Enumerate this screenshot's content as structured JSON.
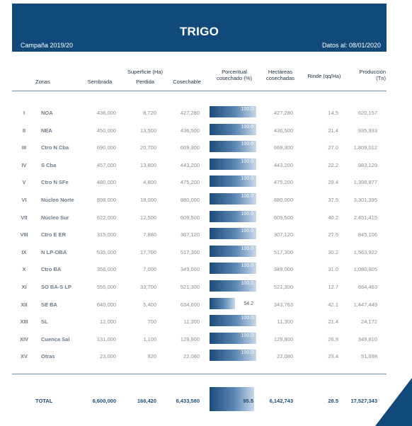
{
  "header": {
    "title": "TRIGO",
    "campaign": "Campaña 2019/20",
    "date": "Datos al: 08/01/2020"
  },
  "columns": {
    "zonas": "Zonas",
    "superficie": "Superficie (Ha)",
    "sembrada": "Sembrada",
    "perdida": "Perdida",
    "cosechable": "Cosechable",
    "porcentual": "Porcentual\ncosechado (%)",
    "hectareas": "Hectáreas\ncosechadas",
    "rinde": "Rinde (qq/Ha)",
    "produccion": "Producción\n(Tn)"
  },
  "rows": [
    {
      "num": "I",
      "zona": "NOA",
      "sembrada": "436,000",
      "perdida": "8,720",
      "cosechable": "427,280",
      "pct": "100.0",
      "pct_value": 100.0,
      "hectareas": "427,280",
      "rinde": "14.5",
      "produccion": "620,157"
    },
    {
      "num": "II",
      "zona": "NEA",
      "sembrada": "450,000",
      "perdida": "13,500",
      "cosechable": "436,500",
      "pct": "100.0",
      "pct_value": 100.0,
      "hectareas": "436,500",
      "rinde": "21.4",
      "produccion": "935,933"
    },
    {
      "num": "III",
      "zona": "Ctro N Cba",
      "sembrada": "690,000",
      "perdida": "20,700",
      "cosechable": "669,300",
      "pct": "100.0",
      "pct_value": 100.0,
      "hectareas": "669,300",
      "rinde": "27.0",
      "produccion": "1,809,012"
    },
    {
      "num": "IV",
      "zona": "S Cba",
      "sembrada": "457,000",
      "perdida": "13,800",
      "cosechable": "443,200",
      "pct": "100.0",
      "pct_value": 100.0,
      "hectareas": "443,200",
      "rinde": "22.2",
      "produccion": "983,129"
    },
    {
      "num": "V",
      "zona": "Ctro N SFe",
      "sembrada": "480,000",
      "perdida": "4,800",
      "cosechable": "475,200",
      "pct": "100.0",
      "pct_value": 100.0,
      "hectareas": "475,200",
      "rinde": "29.4",
      "produccion": "1,398,877"
    },
    {
      "num": "VI",
      "zona": "Núcleo Norte",
      "sembrada": "898,000",
      "perdida": "18,000",
      "cosechable": "880,000",
      "pct": "100.0",
      "pct_value": 100.0,
      "hectareas": "880,000",
      "rinde": "37.5",
      "produccion": "3,301,395"
    },
    {
      "num": "VII",
      "zona": "Núcleo Sur",
      "sembrada": "622,000",
      "perdida": "12,500",
      "cosechable": "609,500",
      "pct": "100.0",
      "pct_value": 100.0,
      "hectareas": "609,500",
      "rinde": "40.2",
      "produccion": "2,451,415"
    },
    {
      "num": "VIII",
      "zona": "Ctro E ER",
      "sembrada": "315,000",
      "perdida": "7,880",
      "cosechable": "307,120",
      "pct": "100.0",
      "pct_value": 100.0,
      "hectareas": "307,120",
      "rinde": "27.5",
      "produccion": "845,106"
    },
    {
      "num": "IX",
      "zona": "N LP-OBA",
      "sembrada": "535,000",
      "perdida": "17,700",
      "cosechable": "517,300",
      "pct": "100.0",
      "pct_value": 100.0,
      "hectareas": "517,300",
      "rinde": "30.2",
      "produccion": "1,563,922"
    },
    {
      "num": "X",
      "zona": "Ctro BA",
      "sembrada": "356,000",
      "perdida": "7,000",
      "cosechable": "349,000",
      "pct": "100.0",
      "pct_value": 100.0,
      "hectareas": "349,000",
      "rinde": "31.0",
      "produccion": "1,080,805"
    },
    {
      "num": "XI",
      "zona": "SO BA-S LP",
      "sembrada": "555,000",
      "perdida": "33,700",
      "cosechable": "521,300",
      "pct": "100.0",
      "pct_value": 100.0,
      "hectareas": "521,300",
      "rinde": "12.7",
      "produccion": "664,463"
    },
    {
      "num": "XII",
      "zona": "SE BA",
      "sembrada": "640,000",
      "perdida": "5,400",
      "cosechable": "634,600",
      "pct": "54.2",
      "pct_value": 54.2,
      "hectareas": "343,763",
      "rinde": "42.1",
      "produccion": "1,447,449"
    },
    {
      "num": "XIII",
      "zona": "SL",
      "sembrada": "12,000",
      "perdida": "700",
      "cosechable": "11,300",
      "pct": "100.0",
      "pct_value": 100.0,
      "hectareas": "11,300",
      "rinde": "21.4",
      "produccion": "24,172"
    },
    {
      "num": "XIV",
      "zona": "Cuenca Sal",
      "sembrada": "131,000",
      "perdida": "1,100",
      "cosechable": "129,900",
      "pct": "100.0",
      "pct_value": 100.0,
      "hectareas": "129,900",
      "rinde": "26.9",
      "produccion": "349,810"
    },
    {
      "num": "XV",
      "zona": "Otras",
      "sembrada": "23,000",
      "perdida": "920",
      "cosechable": "22,080",
      "pct": "100.0",
      "pct_value": 100.0,
      "hectareas": "22,080",
      "rinde": "23.4",
      "produccion": "51,698"
    }
  ],
  "total": {
    "label": "TOTAL",
    "sembrada": "6,600,000",
    "perdida": "166,420",
    "cosechable": "6,433,580",
    "pct": "95.5",
    "pct_value": 95.5,
    "hectareas": "6,142,743",
    "rinde": "28.5",
    "produccion": "17,527,343"
  }
}
